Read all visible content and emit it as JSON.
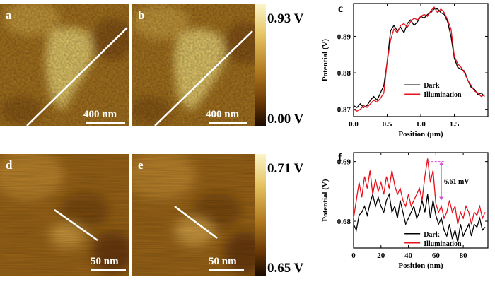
{
  "panels_top": {
    "a": {
      "letter": "a",
      "scale": "400 nm"
    },
    "b": {
      "letter": "b",
      "scale": "400 nm"
    },
    "colorbar": {
      "max": "0.93 V",
      "min": "0.00 V"
    }
  },
  "panels_bottom": {
    "d": {
      "letter": "d",
      "scale": "50 nm"
    },
    "e": {
      "letter": "e",
      "scale": "50 nm"
    },
    "colorbar": {
      "max": "0.71 V",
      "min": "0.65 V"
    }
  },
  "colors": {
    "dark": "#000000",
    "illumination": "#e8101a",
    "annotation": "#d64fd6",
    "afm_dark": "#5a3000",
    "afm_light": "#e9cf6a"
  },
  "chart_data": [
    {
      "id": "c",
      "type": "line",
      "letter": "c",
      "xlabel": "Position (μm)",
      "ylabel": "Potential (V)",
      "xlim": [
        0,
        2.0
      ],
      "ylim": [
        0.868,
        0.899
      ],
      "xticks": [
        "0.0",
        "0.5",
        "1.0",
        "1.5"
      ],
      "xtick_values": [
        0,
        0.5,
        1.0,
        1.5
      ],
      "yticks": [
        "0.87",
        "0.88",
        "0.89"
      ],
      "ytick_values": [
        0.87,
        0.88,
        0.89
      ],
      "legend": [
        "Dark",
        "Illumination"
      ],
      "series": [
        {
          "name": "Dark",
          "color": "#000000",
          "x": [
            0.0,
            0.05,
            0.1,
            0.15,
            0.2,
            0.25,
            0.3,
            0.35,
            0.4,
            0.45,
            0.5,
            0.55,
            0.6,
            0.65,
            0.7,
            0.75,
            0.8,
            0.85,
            0.9,
            0.95,
            1.0,
            1.05,
            1.1,
            1.15,
            1.2,
            1.25,
            1.3,
            1.35,
            1.4,
            1.45,
            1.5,
            1.55,
            1.6,
            1.65,
            1.7,
            1.75,
            1.8,
            1.85,
            1.9,
            1.95
          ],
          "y": [
            0.871,
            0.8705,
            0.8715,
            0.8705,
            0.871,
            0.8725,
            0.8735,
            0.8725,
            0.8745,
            0.8765,
            0.883,
            0.8915,
            0.893,
            0.8915,
            0.8925,
            0.891,
            0.8935,
            0.8945,
            0.893,
            0.894,
            0.8955,
            0.895,
            0.896,
            0.8965,
            0.8975,
            0.8975,
            0.8965,
            0.896,
            0.894,
            0.89,
            0.884,
            0.8815,
            0.881,
            0.8805,
            0.878,
            0.876,
            0.8755,
            0.874,
            0.8745,
            0.8735
          ]
        },
        {
          "name": "Illumination",
          "color": "#e8101a",
          "x": [
            0.0,
            0.05,
            0.1,
            0.15,
            0.2,
            0.25,
            0.3,
            0.35,
            0.4,
            0.45,
            0.5,
            0.55,
            0.6,
            0.65,
            0.7,
            0.75,
            0.8,
            0.85,
            0.9,
            0.95,
            1.0,
            1.05,
            1.1,
            1.15,
            1.2,
            1.25,
            1.3,
            1.35,
            1.4,
            1.45,
            1.5,
            1.55,
            1.6,
            1.65,
            1.7,
            1.75,
            1.8,
            1.85,
            1.9,
            1.95
          ],
          "y": [
            0.87,
            0.8695,
            0.87,
            0.871,
            0.8705,
            0.8715,
            0.8725,
            0.872,
            0.873,
            0.8745,
            0.883,
            0.889,
            0.892,
            0.891,
            0.893,
            0.8935,
            0.8925,
            0.894,
            0.895,
            0.8945,
            0.8955,
            0.896,
            0.8955,
            0.897,
            0.898,
            0.8965,
            0.8975,
            0.8965,
            0.8945,
            0.892,
            0.8845,
            0.8825,
            0.8815,
            0.88,
            0.878,
            0.8765,
            0.875,
            0.8745,
            0.8735,
            0.874
          ]
        }
      ]
    },
    {
      "id": "f",
      "type": "line",
      "letter": "f",
      "xlabel": "Position (nm)",
      "ylabel": "Potential (V)",
      "xlim": [
        0,
        98
      ],
      "ylim": [
        0.6755,
        0.6915
      ],
      "xticks": [
        "0",
        "20",
        "40",
        "60",
        "80"
      ],
      "xtick_values": [
        0,
        20,
        40,
        60,
        80
      ],
      "yticks": [
        "0.68",
        "0.69"
      ],
      "ytick_values": [
        0.68,
        0.69
      ],
      "legend": [
        "Dark",
        "Illumination"
      ],
      "annotation": {
        "text": "6.61 mV",
        "x": 64,
        "y_low": 0.6835,
        "y_high": 0.69,
        "arrow_x": 64,
        "text_x": 66
      },
      "series": [
        {
          "name": "Dark",
          "color": "#000000",
          "x": [
            0,
            2,
            4,
            6,
            8,
            10,
            12,
            14,
            16,
            18,
            20,
            22,
            24,
            26,
            28,
            30,
            32,
            34,
            36,
            38,
            40,
            42,
            44,
            46,
            48,
            50,
            52,
            54,
            56,
            58,
            60,
            62,
            64,
            66,
            68,
            70,
            72,
            74,
            76,
            78,
            80,
            82,
            84,
            86,
            88,
            90,
            92,
            94,
            96
          ],
          "y": [
            0.6795,
            0.6785,
            0.681,
            0.6815,
            0.6825,
            0.681,
            0.683,
            0.6845,
            0.6825,
            0.684,
            0.6825,
            0.6815,
            0.6835,
            0.6845,
            0.6815,
            0.6825,
            0.6805,
            0.6835,
            0.6815,
            0.6795,
            0.6805,
            0.6815,
            0.6825,
            0.6805,
            0.6815,
            0.6835,
            0.6815,
            0.6845,
            0.6805,
            0.6835,
            0.681,
            0.6795,
            0.6805,
            0.6785,
            0.6775,
            0.6795,
            0.677,
            0.6785,
            0.6765,
            0.6795,
            0.6775,
            0.6785,
            0.6795,
            0.6775,
            0.6795,
            0.679,
            0.6805,
            0.6785,
            0.679
          ]
        },
        {
          "name": "Illumination",
          "color": "#e8101a",
          "x": [
            0,
            2,
            4,
            6,
            8,
            10,
            12,
            14,
            16,
            18,
            20,
            22,
            24,
            26,
            28,
            30,
            32,
            34,
            36,
            38,
            40,
            42,
            44,
            46,
            48,
            50,
            52,
            54,
            56,
            58,
            60,
            62,
            64,
            66,
            68,
            70,
            72,
            74,
            76,
            78,
            80,
            82,
            84,
            86,
            88,
            90,
            92,
            94,
            96
          ],
          "y": [
            0.6805,
            0.6835,
            0.6865,
            0.684,
            0.6875,
            0.6855,
            0.6885,
            0.6845,
            0.687,
            0.685,
            0.6865,
            0.6845,
            0.6875,
            0.6855,
            0.6885,
            0.686,
            0.6845,
            0.6855,
            0.6835,
            0.6825,
            0.6845,
            0.6825,
            0.6835,
            0.6845,
            0.6855,
            0.6835,
            0.6875,
            0.6905,
            0.6865,
            0.6885,
            0.683,
            0.6815,
            0.6825,
            0.6805,
            0.6815,
            0.6835,
            0.6815,
            0.6825,
            0.6795,
            0.6815,
            0.6805,
            0.6825,
            0.6815,
            0.6795,
            0.6815,
            0.681,
            0.6825,
            0.6805,
            0.6815
          ]
        }
      ]
    }
  ]
}
